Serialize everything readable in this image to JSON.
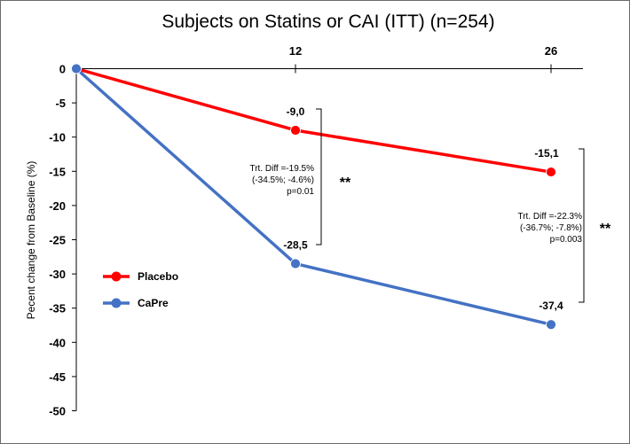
{
  "chart_data": {
    "type": "line",
    "title": "Subjects on Statins or CAI (ITT) (n=254)",
    "xlabel": "",
    "ylabel": "Pecent change  from Baseline (%)",
    "x": [
      0,
      12,
      26
    ],
    "x_tick_labels": [
      "12",
      "26"
    ],
    "ylim": [
      -50,
      0
    ],
    "y_ticks": [
      0,
      -5,
      -10,
      -15,
      -20,
      -25,
      -30,
      -35,
      -40,
      -45,
      -50
    ],
    "grid": false,
    "legend_position": "left",
    "series": [
      {
        "name": "Placebo",
        "color": "#ff0000",
        "values": [
          0,
          -9.0,
          -15.1
        ],
        "labels": [
          "",
          "-9,0",
          "-15,1"
        ]
      },
      {
        "name": "CaPre",
        "color": "#4472c4",
        "values": [
          0,
          -28.5,
          -37.4
        ],
        "labels": [
          "",
          "-28,5",
          "-37,4"
        ]
      }
    ],
    "annotations": [
      {
        "x": 12,
        "lines": [
          "Trt. Diff =-19.5%",
          "(-34.5%; -4.6%)",
          "p=0.01"
        ],
        "significance": "**"
      },
      {
        "x": 26,
        "lines": [
          "Trt. Diff =-22.3%",
          "(-36.7%; -7.8%)",
          "p=0.003"
        ],
        "significance": "**"
      }
    ]
  }
}
